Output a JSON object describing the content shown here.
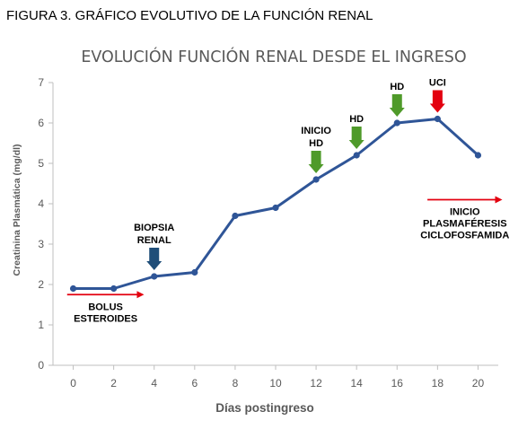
{
  "caption": "FIGURA 3. GRÁFICO EVOLUTIVO DE LA FUNCIÓN RENAL",
  "colors": {
    "line": "#2f5597",
    "axis": "#bfbfbf",
    "text": "#595959",
    "arrow_red": "#e3000f",
    "arrow_green": "#4f9a2a",
    "arrow_blue": "#1f4e79"
  },
  "chart_data": {
    "type": "line",
    "title": "EVOLUCIÓN FUNCIÓN RENAL DESDE EL INGRESO",
    "xlabel": "Días postingreso",
    "ylabel": "Creatinina Plasmática (mg/dl)",
    "x": [
      0,
      2,
      4,
      6,
      8,
      10,
      12,
      14,
      16,
      18,
      20
    ],
    "xticks": [
      "0",
      "2",
      "4",
      "6",
      "8",
      "10",
      "12",
      "14",
      "16",
      "18",
      "20"
    ],
    "yticks": [
      "0",
      "1",
      "2",
      "3",
      "4",
      "5",
      "6",
      "7"
    ],
    "xlim": [
      -1,
      21
    ],
    "ylim": [
      0,
      7
    ],
    "grid": false,
    "legend": "none",
    "series": [
      {
        "values": [
          1.9,
          1.9,
          2.2,
          2.3,
          3.7,
          3.9,
          4.6,
          5.2,
          6.0,
          6.1,
          5.2
        ]
      }
    ],
    "annotations": [
      {
        "lines": [
          "BOLUS",
          "ESTEROIDES"
        ],
        "kind": "right-arrow",
        "x_from": -0.3,
        "x_to": 3.5,
        "y": 1.75,
        "color": "arrow_red"
      },
      {
        "lines": [
          "BIOPSIA",
          "RENAL"
        ],
        "kind": "down-arrow",
        "x": 4,
        "y": 2.2,
        "color": "arrow_blue"
      },
      {
        "lines": [
          "INICIO",
          "HD"
        ],
        "kind": "down-arrow",
        "x": 12,
        "y": 4.6,
        "color": "arrow_green"
      },
      {
        "lines": [
          "HD"
        ],
        "kind": "down-arrow",
        "x": 14,
        "y": 5.2,
        "color": "arrow_green"
      },
      {
        "lines": [
          "HD"
        ],
        "kind": "down-arrow",
        "x": 16,
        "y": 6.0,
        "color": "arrow_green"
      },
      {
        "lines": [
          "UCI"
        ],
        "kind": "down-arrow",
        "x": 18,
        "y": 6.1,
        "color": "arrow_red"
      },
      {
        "lines": [
          "INICIO",
          "PLASMAFÉRESIS",
          "CICLOFOSFAMIDA"
        ],
        "kind": "right-arrow",
        "x_from": 17.5,
        "x_to": 21.2,
        "y": 4.1,
        "color": "arrow_red"
      }
    ]
  }
}
